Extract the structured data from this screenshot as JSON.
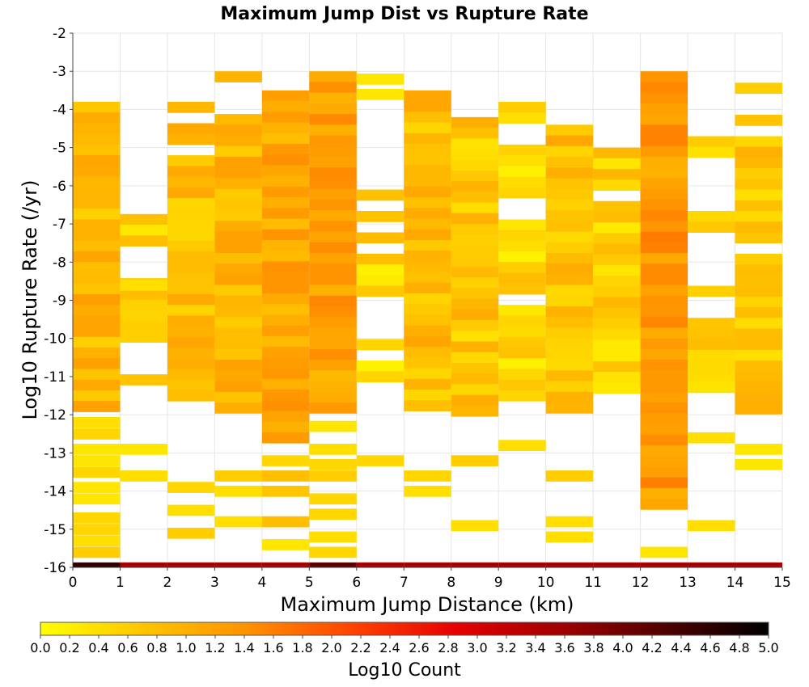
{
  "chart_data": {
    "type": "heatmap",
    "title": "Maximum Jump Dist vs Rupture Rate",
    "xlabel": "Maximum Jump Distance (km)",
    "ylabel": "Log10 Rupture Rate (/yr)",
    "xlim": [
      0,
      15
    ],
    "ylim": [
      -16,
      -2
    ],
    "x_ticks": [
      "0",
      "1",
      "2",
      "3",
      "4",
      "5",
      "6",
      "7",
      "8",
      "9",
      "10",
      "11",
      "12",
      "13",
      "14",
      "15"
    ],
    "y_ticks": [
      "-2",
      "-3",
      "-4",
      "-5",
      "-6",
      "-7",
      "-8",
      "-9",
      "-10",
      "-11",
      "-12",
      "-13",
      "-14",
      "-15",
      "-16"
    ],
    "grid": true,
    "bin_width_x": 1,
    "bin_height_y": 0.28,
    "colorbar": {
      "label": "Log10 Count",
      "range": [
        0,
        5
      ],
      "ticks": [
        "0.0",
        "0.2",
        "0.4",
        "0.6",
        "0.8",
        "1.0",
        "1.2",
        "1.4",
        "1.6",
        "1.8",
        "2.0",
        "2.2",
        "2.4",
        "2.6",
        "2.8",
        "3.0",
        "3.2",
        "3.4",
        "3.6",
        "3.8",
        "4.0",
        "4.2",
        "4.4",
        "4.6",
        "4.8",
        "5.0"
      ],
      "colors": [
        "#ffff00",
        "#ffc400",
        "#ff9100",
        "#ff4200",
        "#e60000",
        "#a00000",
        "#500000",
        "#000000"
      ]
    },
    "columns": [
      {
        "x": 0,
        "dense_range": [
          -11.9,
          -3.8
        ],
        "dense_value": 0.9,
        "sparse_cells": [
          [
            -12.2,
            0.4
          ],
          [
            -12.5,
            0.5
          ],
          [
            -12.9,
            0.3
          ],
          [
            -13.2,
            0.3
          ],
          [
            -13.5,
            0.5
          ],
          [
            -13.9,
            0.3
          ],
          [
            -14.2,
            0.3
          ],
          [
            -14.7,
            0.5
          ],
          [
            -15.0,
            0.5
          ],
          [
            -15.3,
            0.4
          ],
          [
            -15.6,
            0.6
          ]
        ],
        "gaps": []
      },
      {
        "x": 1,
        "dense_range": [
          -11.3,
          -5.9
        ],
        "dense_value": 0.5,
        "sparse_cells": [
          [
            -8.6,
            0.4
          ],
          [
            -12.9,
            0.3
          ],
          [
            -13.6,
            0.4
          ]
        ],
        "gaps": [
          [
            -6.0,
            -6.8
          ],
          [
            -7.5,
            -8.5
          ],
          [
            -10.1,
            -10.8
          ]
        ]
      },
      {
        "x": 2,
        "dense_range": [
          -11.5,
          -3.8
        ],
        "dense_value": 0.8,
        "sparse_cells": [
          [
            -13.9,
            0.5
          ],
          [
            -14.5,
            0.4
          ],
          [
            -15.1,
            0.6
          ]
        ],
        "gaps": [
          [
            -4.1,
            -4.4
          ],
          [
            -4.9,
            -5.2
          ]
        ]
      },
      {
        "x": 3,
        "dense_range": [
          -11.9,
          -3.0
        ],
        "dense_value": 0.9,
        "sparse_cells": [
          [
            -13.6,
            0.6
          ],
          [
            -14.0,
            0.4
          ],
          [
            -14.8,
            0.4
          ]
        ],
        "gaps": [
          [
            -3.3,
            -4.1
          ]
        ]
      },
      {
        "x": 4,
        "dense_range": [
          -12.6,
          -3.5
        ],
        "dense_value": 1.1,
        "sparse_cells": [
          [
            -13.2,
            0.5
          ],
          [
            -13.6,
            0.8
          ],
          [
            -14.0,
            0.7
          ],
          [
            -14.8,
            0.8
          ],
          [
            -15.4,
            0.3
          ]
        ],
        "gaps": []
      },
      {
        "x": 5,
        "dense_range": [
          -12.0,
          -3.0
        ],
        "dense_value": 1.2,
        "sparse_cells": [
          [
            -12.3,
            0.3
          ],
          [
            -12.9,
            0.4
          ],
          [
            -13.3,
            0.5
          ],
          [
            -13.6,
            0.6
          ],
          [
            -14.2,
            0.5
          ],
          [
            -14.6,
            0.5
          ],
          [
            -15.2,
            0.4
          ],
          [
            -15.6,
            0.5
          ]
        ],
        "gaps": []
      },
      {
        "x": 6,
        "dense_range": [
          -11.0,
          -6.1
        ],
        "dense_value": 0.5,
        "sparse_cells": [
          [
            -3.2,
            0.3
          ],
          [
            -3.6,
            0.3
          ],
          [
            -13.2,
            0.5
          ]
        ],
        "gaps": [
          [
            -6.4,
            -6.7
          ],
          [
            -7.0,
            -7.3
          ],
          [
            -7.6,
            -7.9
          ],
          [
            -8.9,
            -10.0
          ],
          [
            -10.3,
            -10.7
          ]
        ]
      },
      {
        "x": 7,
        "dense_range": [
          -12.0,
          -3.5
        ],
        "dense_value": 0.8,
        "sparse_cells": [
          [
            -13.6,
            0.5
          ],
          [
            -14.0,
            0.4
          ]
        ],
        "gaps": [
          [
            -4.1,
            -4.1
          ]
        ]
      },
      {
        "x": 8,
        "dense_range": [
          -12.0,
          -4.2
        ],
        "dense_value": 0.7,
        "sparse_cells": [
          [
            -13.2,
            0.6
          ],
          [
            -14.9,
            0.4
          ]
        ],
        "gaps": [
          [
            -7.7,
            -7.7
          ]
        ]
      },
      {
        "x": 9,
        "dense_range": [
          -11.5,
          -3.8
        ],
        "dense_value": 0.5,
        "sparse_cells": [
          [
            -12.8,
            0.4
          ]
        ],
        "gaps": [
          [
            -4.4,
            -5.0
          ],
          [
            -6.4,
            -7.0
          ],
          [
            -8.8,
            -9.0
          ],
          [
            -11.0,
            -11.2
          ]
        ]
      },
      {
        "x": 10,
        "dense_range": [
          -12.2,
          -4.4
        ],
        "dense_value": 0.8,
        "sparse_cells": [
          [
            -13.6,
            0.6
          ],
          [
            -14.8,
            0.4
          ],
          [
            -15.2,
            0.4
          ]
        ],
        "gaps": [
          [
            -12.0,
            -12.2
          ]
        ]
      },
      {
        "x": 11,
        "dense_range": [
          -11.5,
          -5.0
        ],
        "dense_value": 0.6,
        "sparse_cells": [],
        "gaps": [
          [
            -6.2,
            -6.5
          ]
        ]
      },
      {
        "x": 12,
        "dense_range": [
          -14.5,
          -3.0
        ],
        "dense_value": 1.3,
        "sparse_cells": [
          [
            -15.6,
            0.3
          ]
        ],
        "gaps": []
      },
      {
        "x": 13,
        "dense_range": [
          -11.3,
          -4.7
        ],
        "dense_value": 0.5,
        "sparse_cells": [
          [
            -12.6,
            0.4
          ],
          [
            -14.9,
            0.4
          ]
        ],
        "gaps": [
          [
            -5.3,
            -6.6
          ],
          [
            -7.2,
            -8.7
          ],
          [
            -9.0,
            -9.5
          ]
        ]
      },
      {
        "x": 14,
        "dense_range": [
          -12.1,
          -3.3
        ],
        "dense_value": 0.7,
        "sparse_cells": [
          [
            -12.9,
            0.3
          ],
          [
            -13.3,
            0.3
          ]
        ],
        "gaps": [
          [
            -3.6,
            -4.1
          ],
          [
            -4.4,
            -4.7
          ],
          [
            -7.4,
            -7.9
          ]
        ]
      }
    ],
    "bottom_row": {
      "y": -15.95,
      "values": [
        4.6,
        3.5,
        3.5,
        3.5,
        3.5,
        4.2,
        3.5,
        3.5,
        3.5,
        3.5,
        3.5,
        3.5,
        3.5,
        3.5,
        3.5
      ]
    }
  }
}
